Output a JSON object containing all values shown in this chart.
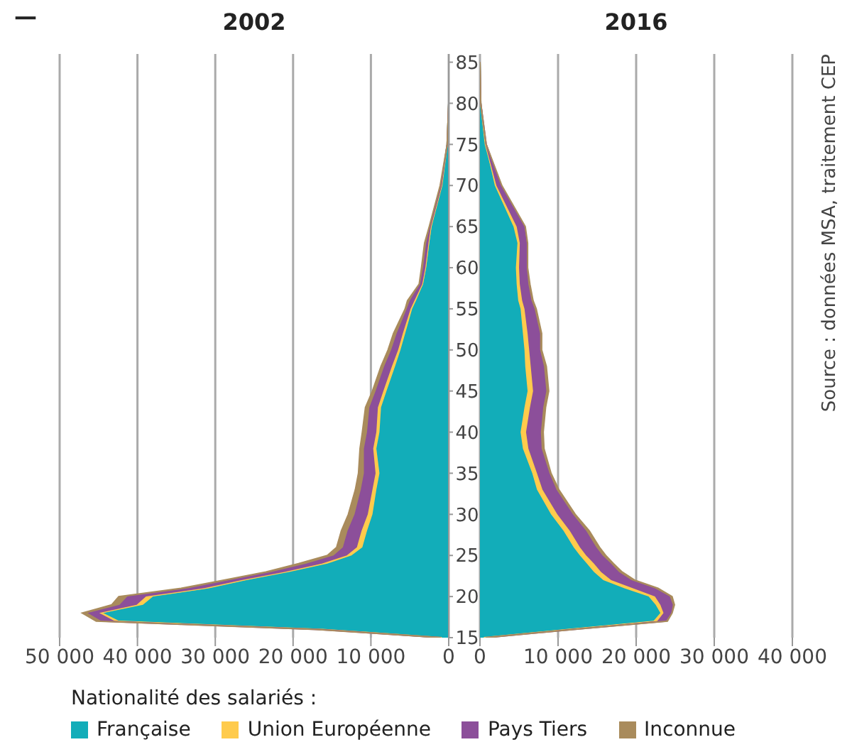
{
  "chart_data": [
    {
      "type": "area",
      "title": "2002",
      "annotations": [
        "—"
      ],
      "stacked": true,
      "orientation": "horizontal",
      "grid": "x",
      "x": [
        15,
        16,
        17,
        18,
        19,
        20,
        21,
        22,
        23,
        24,
        25,
        26,
        28,
        30,
        33,
        35,
        38,
        40,
        43,
        45,
        48,
        50,
        52,
        55,
        56,
        58,
        60,
        63,
        65,
        70,
        75,
        80,
        85
      ],
      "series": [
        {
          "color": "#12adb9",
          "values": [
            900,
            16000,
            42300,
            44400,
            39300,
            38000,
            30800,
            26000,
            20500,
            15600,
            12500,
            11100,
            10500,
            9800,
            9300,
            8900,
            9300,
            8900,
            8700,
            8000,
            6900,
            6200,
            5600,
            4700,
            4200,
            3300,
            2900,
            2500,
            2200,
            900,
            200,
            0,
            0
          ]
        },
        {
          "color": "#ffcb4c",
          "values": [
            0,
            200,
            600,
            500,
            800,
            900,
            700,
            600,
            600,
            700,
            600,
            700,
            700,
            600,
            500,
            500,
            400,
            400,
            400,
            400,
            400,
            300,
            300,
            200,
            200,
            100,
            100,
            100,
            100,
            0,
            0,
            0,
            0
          ]
        },
        {
          "color": "#8c4f9a",
          "values": [
            100,
            600,
            1700,
            1500,
            2200,
            2400,
            2000,
            1600,
            1700,
            2000,
            1700,
            1800,
            1800,
            1700,
            1500,
            1500,
            1200,
            1200,
            1100,
            1000,
            1000,
            900,
            800,
            500,
            600,
            300,
            300,
            300,
            100,
            100,
            0,
            0,
            0
          ]
        },
        {
          "color": "#a98b5c",
          "values": [
            0,
            200,
            700,
            700,
            1000,
            1100,
            900,
            700,
            700,
            1000,
            800,
            800,
            800,
            800,
            700,
            700,
            500,
            600,
            500,
            400,
            400,
            400,
            400,
            200,
            300,
            100,
            200,
            200,
            100,
            100,
            0,
            0,
            0
          ]
        }
      ],
      "xlim": [
        50000,
        0
      ],
      "xticks": [
        {
          "value": 50000,
          "label": "50 000"
        },
        {
          "value": 40000,
          "label": "40 000"
        },
        {
          "value": 30000,
          "label": "30 000"
        },
        {
          "value": 20000,
          "label": "20 000"
        },
        {
          "value": 10000,
          "label": "10 000"
        },
        0
      ],
      "ylim": [
        15,
        86
      ],
      "yticks": [
        15,
        20,
        25,
        30,
        35,
        40,
        45,
        50,
        55,
        60,
        65,
        70,
        75,
        80,
        85
      ]
    },
    {
      "type": "area",
      "title": "2016",
      "annotations": [
        "Source : données MSA, traitement CEP"
      ],
      "stacked": true,
      "orientation": "horizontal",
      "grid": "x",
      "tick_labels": "x",
      "legend": "bottom",
      "legend_title": "Nationalité des salariés :",
      "x": [
        15,
        16,
        17,
        18,
        19,
        20,
        21,
        22,
        23,
        24,
        25,
        26,
        28,
        30,
        33,
        35,
        38,
        40,
        43,
        45,
        48,
        50,
        52,
        55,
        56,
        58,
        60,
        63,
        65,
        70,
        75,
        80,
        85
      ],
      "series": [
        {
          "name": "Française",
          "color": "#12adb9",
          "values": [
            500,
            11000,
            22200,
            23100,
            22500,
            21600,
            18500,
            15800,
            14600,
            13700,
            12800,
            12000,
            10700,
            9100,
            7300,
            6700,
            5500,
            5200,
            5700,
            6100,
            5800,
            5700,
            5500,
            5200,
            4900,
            4700,
            4600,
            4800,
            4300,
            1900,
            700,
            100,
            0
          ]
        },
        {
          "name": "Union Européenne",
          "color": "#ffcb4c",
          "values": [
            0,
            300,
            500,
            400,
            600,
            800,
            1100,
            1000,
            900,
            900,
            800,
            800,
            800,
            800,
            700,
            600,
            700,
            700,
            700,
            700,
            700,
            600,
            600,
            500,
            500,
            400,
            400,
            300,
            400,
            200,
            0,
            0,
            0
          ]
        },
        {
          "name": "Pays Tiers",
          "color": "#8c4f9a",
          "values": [
            300,
            600,
            1100,
            1000,
            1600,
            1900,
            2800,
            2600,
            2300,
            2200,
            2100,
            2100,
            2100,
            2000,
            1800,
            1600,
            1700,
            1900,
            1700,
            1700,
            1700,
            1400,
            1600,
            1300,
            1200,
            1100,
            1000,
            900,
            1000,
            600,
            100,
            0,
            0
          ]
        },
        {
          "name": "Inconnue",
          "color": "#a98b5c",
          "values": [
            0,
            100,
            200,
            100,
            200,
            300,
            400,
            400,
            400,
            300,
            400,
            400,
            400,
            300,
            300,
            200,
            300,
            300,
            300,
            300,
            300,
            200,
            200,
            200,
            200,
            200,
            100,
            100,
            100,
            100,
            0,
            0,
            0
          ]
        }
      ],
      "xlim": [
        0,
        40000
      ],
      "xticks": [
        0,
        {
          "value": 10000,
          "label": "10 000"
        },
        {
          "value": 20000,
          "label": "20 000"
        },
        {
          "value": 30000,
          "label": "30 000"
        },
        {
          "value": 40000,
          "label": "40 000"
        }
      ],
      "ylim": [
        15,
        86
      ]
    }
  ]
}
